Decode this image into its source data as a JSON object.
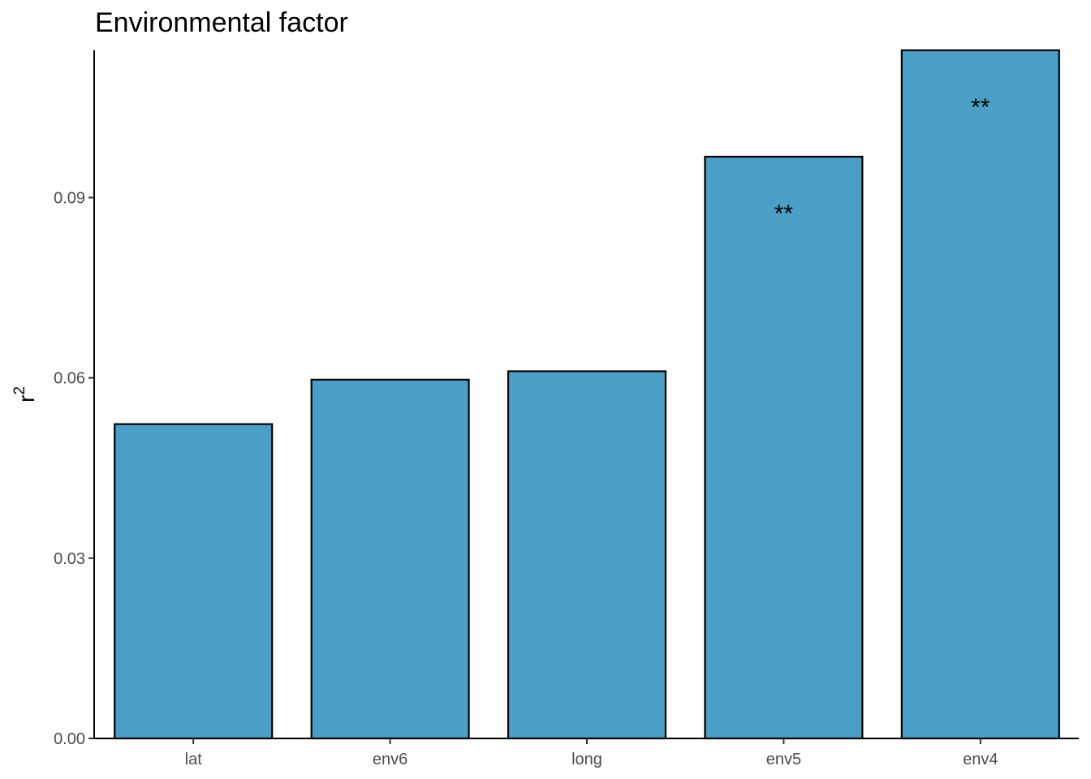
{
  "chart_data": {
    "type": "bar",
    "title": "Environmental factor",
    "xlabel": "",
    "ylabel": "r",
    "ylabel_superscript": "2",
    "categories": [
      "lat",
      "env6",
      "long",
      "env5",
      "env4"
    ],
    "values": [
      0.0523,
      0.0597,
      0.0611,
      0.0968,
      0.1145
    ],
    "annotations": [
      "",
      "",
      "",
      "**",
      "**"
    ],
    "yticks": [
      0.0,
      0.03,
      0.06,
      0.09
    ],
    "ytick_labels": [
      "0.00",
      "0.03",
      "0.06",
      "0.09"
    ],
    "ylim": [
      0,
      0.1145
    ],
    "grid": false,
    "legend": "none",
    "bar_color": "#4b9fc7",
    "bar_edge_color": "#000000"
  }
}
